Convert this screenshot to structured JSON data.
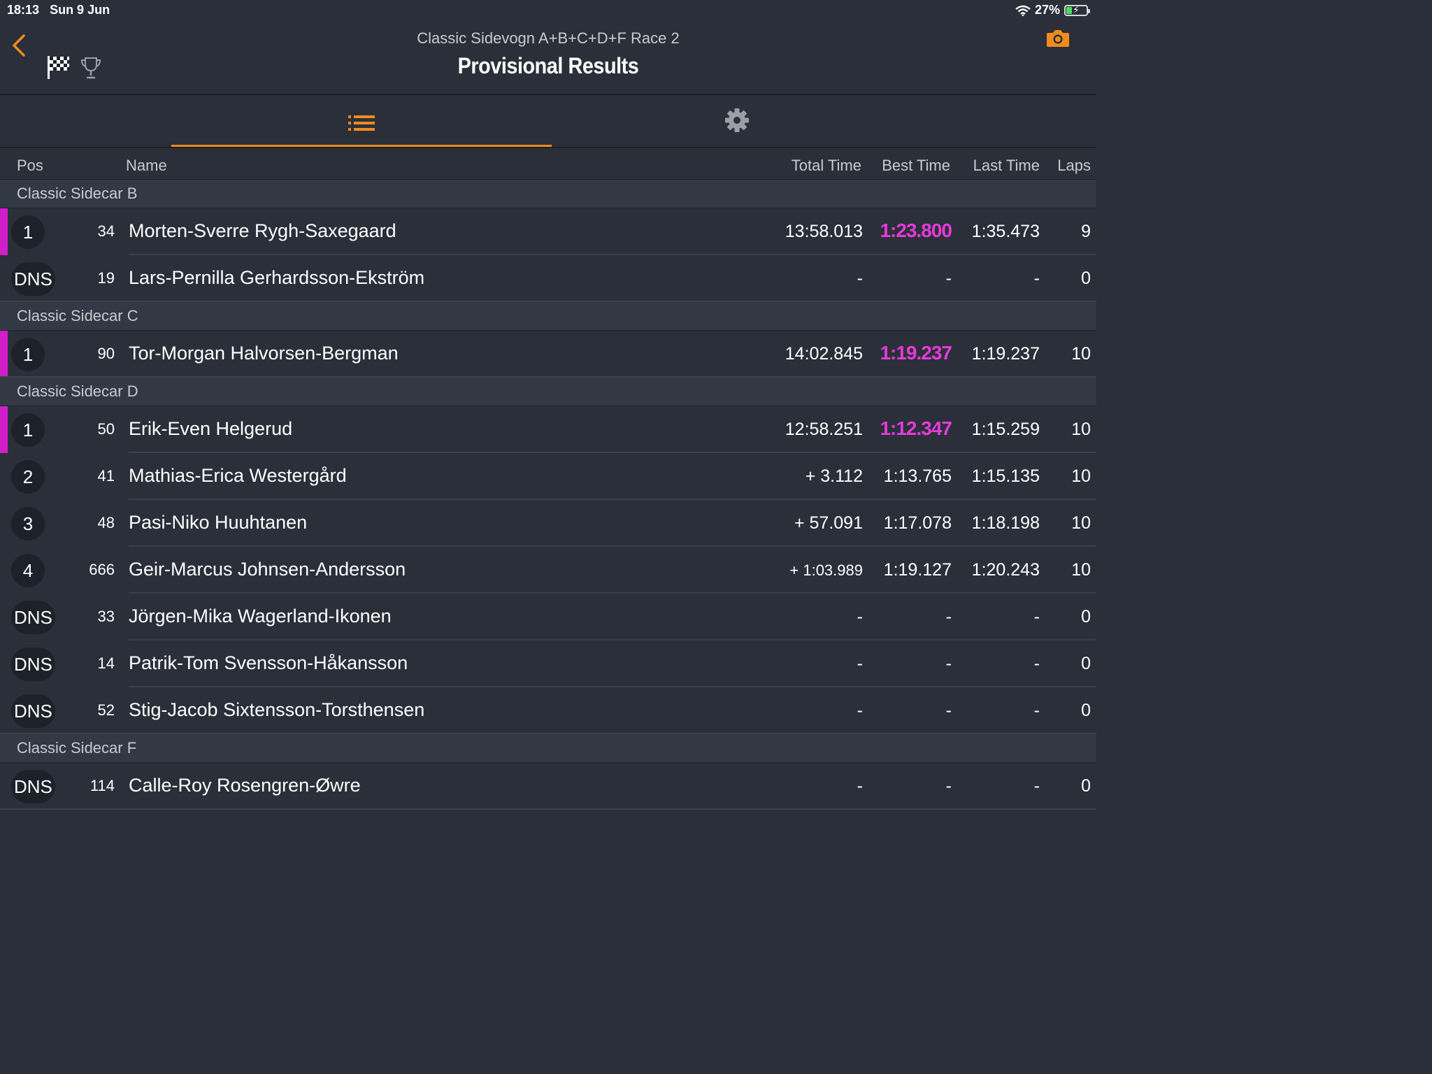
{
  "status_bar": {
    "time": "18:13",
    "date": "Sun 9 Jun",
    "battery": "27%",
    "battery_level": 0.27
  },
  "header": {
    "subtitle": "Classic Sidevogn A+B+C+D+F Race 2",
    "title": "Provisional Results",
    "icons": [
      "chevron-left-icon",
      "checkered-flag-icon",
      "trophy-icon",
      "camera-icon"
    ]
  },
  "tabs": [
    {
      "icon": "list-icon",
      "active": true
    },
    {
      "icon": "gear-icon",
      "active": false
    }
  ],
  "columns": {
    "pos": "Pos",
    "name": "Name",
    "total": "Total Time",
    "best": "Best Time",
    "last": "Last Time",
    "laps": "Laps"
  },
  "colors": {
    "accent": "#f08c1e",
    "highlight": "#e53bd8",
    "background": "#2a2f39",
    "section": "#323844"
  },
  "sections": [
    {
      "title": "Classic Sidecar B",
      "rows": [
        {
          "pos": "1",
          "num": "34",
          "name": "Morten-Sverre Rygh-Saxegaard",
          "total": "13:58.013",
          "best": "1:23.800",
          "last": "1:35.473",
          "laps": "9",
          "best_highlight": true
        },
        {
          "pos": "DNS",
          "num": "19",
          "name": "Lars-Pernilla Gerhardsson-Ekström",
          "total": "-",
          "best": "-",
          "last": "-",
          "laps": "0",
          "best_highlight": false
        }
      ]
    },
    {
      "title": "Classic Sidecar C",
      "rows": [
        {
          "pos": "1",
          "num": "90",
          "name": "Tor-Morgan Halvorsen-Bergman",
          "total": "14:02.845",
          "best": "1:19.237",
          "last": "1:19.237",
          "laps": "10",
          "best_highlight": true
        }
      ]
    },
    {
      "title": "Classic Sidecar D",
      "rows": [
        {
          "pos": "1",
          "num": "50",
          "name": "Erik-Even Helgerud",
          "total": "12:58.251",
          "best": "1:12.347",
          "last": "1:15.259",
          "laps": "10",
          "best_highlight": true
        },
        {
          "pos": "2",
          "num": "41",
          "name": "Mathias-Erica Westergård",
          "total": "+ 3.112",
          "best": "1:13.765",
          "last": "1:15.135",
          "laps": "10",
          "best_highlight": false
        },
        {
          "pos": "3",
          "num": "48",
          "name": "Pasi-Niko Huuhtanen",
          "total": "+ 57.091",
          "best": "1:17.078",
          "last": "1:18.198",
          "laps": "10",
          "best_highlight": false
        },
        {
          "pos": "4",
          "num": "666",
          "name": "Geir-Marcus Johnsen-Andersson",
          "total": "+ 1:03.989",
          "best": "1:19.127",
          "last": "1:20.243",
          "laps": "10",
          "best_highlight": false,
          "small_total": true
        },
        {
          "pos": "DNS",
          "num": "33",
          "name": "Jörgen-Mika Wagerland-Ikonen",
          "total": "-",
          "best": "-",
          "last": "-",
          "laps": "0",
          "best_highlight": false
        },
        {
          "pos": "DNS",
          "num": "14",
          "name": "Patrik-Tom Svensson-Håkansson",
          "total": "-",
          "best": "-",
          "last": "-",
          "laps": "0",
          "best_highlight": false
        },
        {
          "pos": "DNS",
          "num": "52",
          "name": "Stig-Jacob Sixtensson-Torsthensen",
          "total": "-",
          "best": "-",
          "last": "-",
          "laps": "0",
          "best_highlight": false
        }
      ]
    },
    {
      "title": "Classic Sidecar F",
      "rows": [
        {
          "pos": "DNS",
          "num": "114",
          "name": "Calle-Roy Rosengren-Øwre",
          "total": "-",
          "best": "-",
          "last": "-",
          "laps": "0",
          "best_highlight": false
        }
      ]
    }
  ]
}
